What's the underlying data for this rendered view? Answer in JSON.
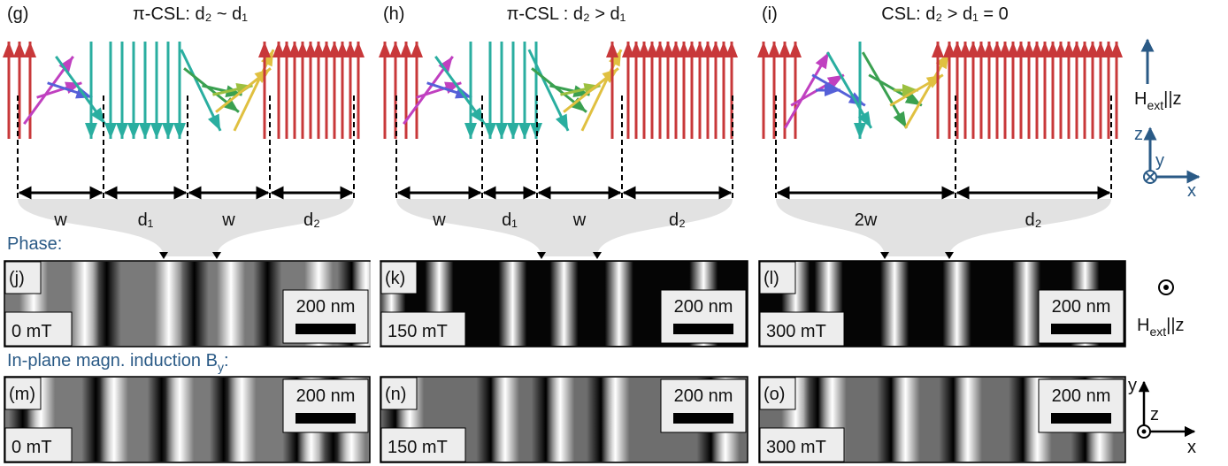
{
  "top_panels": [
    {
      "label": "(g)",
      "title": "π-CSL: d₂ ~ d₁",
      "dims": [
        "w",
        "d₁",
        "w",
        "d₂"
      ]
    },
    {
      "label": "(h)",
      "title": "π-CSL : d₂ > d₁",
      "dims": [
        "w",
        "d₁",
        "w",
        "d₂"
      ]
    },
    {
      "label": "(i)",
      "title": "CSL: d₂ > d₁ = 0",
      "dims": [
        "2w",
        "d₂"
      ]
    }
  ],
  "phase_label": "Phase:",
  "induction_label": {
    "text": "In-plane magn. induction B",
    "sub": "y",
    "tail": ":"
  },
  "field_label": {
    "text": "H",
    "sub": "ext",
    "tail": "||z"
  },
  "axes": {
    "x": "x",
    "y": "y",
    "z": "z"
  },
  "images": [
    {
      "label": "(j)",
      "field": "0 mT",
      "scale": "200 nm"
    },
    {
      "label": "(k)",
      "field": "150 mT",
      "scale": "200 nm"
    },
    {
      "label": "(l)",
      "field": "300 mT",
      "scale": "200 nm"
    },
    {
      "label": "(m)",
      "field": "0 mT",
      "scale": "200 nm"
    },
    {
      "label": "(n)",
      "field": "150 mT",
      "scale": "200 nm"
    },
    {
      "label": "(o)",
      "field": "300 mT",
      "scale": "200 nm"
    }
  ]
}
